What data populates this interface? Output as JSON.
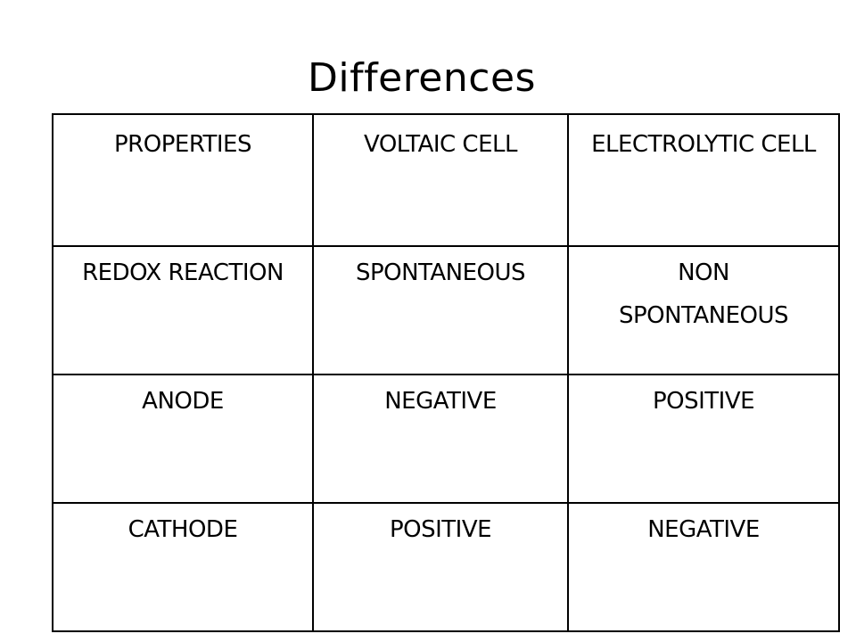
{
  "slide": {
    "title": "Differences"
  },
  "table": {
    "header": [
      "PROPERTIES",
      "VOLTAIC CELL",
      "ELECTROLYTIC CELL"
    ],
    "rows": [
      {
        "property": "REDOX REACTION",
        "voltaic": "SPONTANEOUS",
        "electrolytic_line1": "NON",
        "electrolytic_line2": "SPONTANEOUS"
      },
      {
        "property": "ANODE",
        "voltaic": "NEGATIVE",
        "electrolytic": "POSITIVE"
      },
      {
        "property": "CATHODE",
        "voltaic": "POSITIVE",
        "electrolytic": "NEGATIVE"
      }
    ]
  }
}
